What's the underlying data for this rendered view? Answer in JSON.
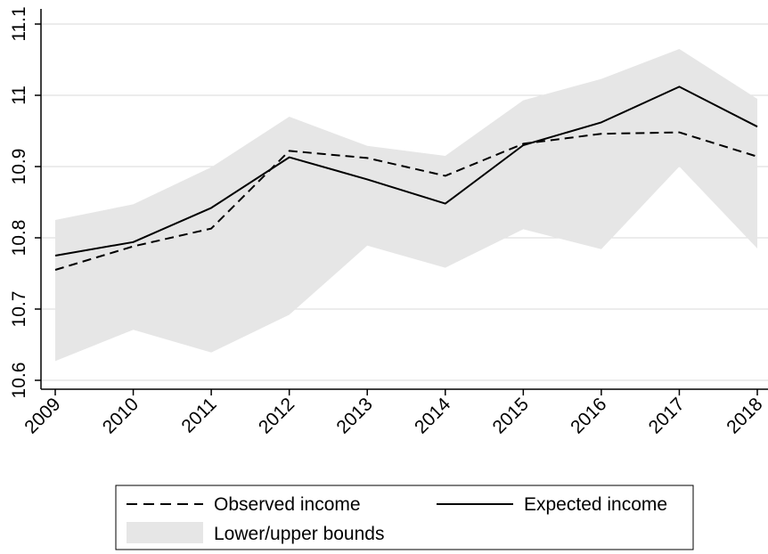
{
  "chart_data": {
    "type": "line",
    "title": "",
    "xlabel": "",
    "ylabel": "",
    "categories": [
      "2009",
      "2010",
      "2011",
      "2012",
      "2013",
      "2014",
      "2015",
      "2016",
      "2017",
      "2018"
    ],
    "ylim": [
      10.6,
      11.1
    ],
    "yticks": [
      10.6,
      10.7,
      10.8,
      10.9,
      11,
      11.1
    ],
    "ytick_labels": [
      "10.6",
      "10.7",
      "10.8",
      "10.9",
      "11",
      "11.1"
    ],
    "grid": true,
    "legend_position": "bottom",
    "band": {
      "name": "Lower/upper bounds",
      "lower": [
        10.627,
        10.671,
        10.639,
        10.692,
        10.789,
        10.758,
        10.812,
        10.784,
        10.9,
        10.785
      ],
      "upper": [
        10.825,
        10.847,
        10.899,
        10.97,
        10.929,
        10.915,
        10.993,
        11.023,
        11.065,
        10.995
      ],
      "color": "#e6e6e6"
    },
    "series": [
      {
        "name": "Observed income",
        "style": "dashed",
        "color": "#000000",
        "values": [
          10.755,
          10.788,
          10.813,
          10.922,
          10.912,
          10.887,
          10.932,
          10.946,
          10.948,
          10.914
        ]
      },
      {
        "name": "Expected income",
        "style": "solid",
        "color": "#000000",
        "values": [
          10.775,
          10.794,
          10.842,
          10.913,
          10.882,
          10.848,
          10.93,
          10.962,
          11.012,
          10.956
        ]
      }
    ]
  }
}
